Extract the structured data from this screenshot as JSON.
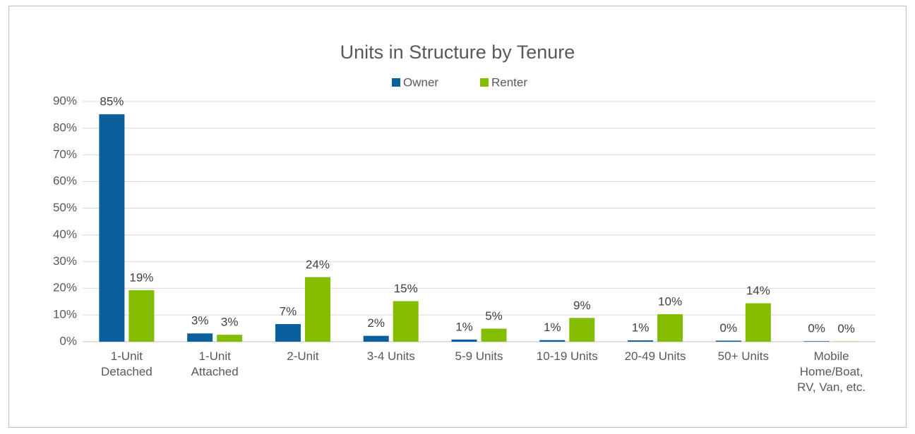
{
  "chart_data": {
    "type": "bar",
    "title": "Units in Structure by Tenure",
    "categories": [
      "1-Unit Detached",
      "1-Unit Attached",
      "2-Unit",
      "3-4 Units",
      "5-9 Units",
      "10-19 Units",
      "20-49 Units",
      "50+ Units",
      "Mobile Home/Boat, RV, Van, etc."
    ],
    "series": [
      {
        "name": "Owner",
        "color": "#0b5f9c",
        "values": [
          85.2,
          3.1,
          6.6,
          2.2,
          0.8,
          0.6,
          0.5,
          0.4,
          0.2
        ],
        "value_labels": [
          "85%",
          "3%",
          "7%",
          "2%",
          "1%",
          "1%",
          "1%",
          "0%",
          "0%"
        ]
      },
      {
        "name": "Renter",
        "color": "#84bd00",
        "values": [
          19.3,
          2.6,
          24.2,
          15.2,
          4.9,
          8.9,
          10.3,
          14.4,
          0.1
        ],
        "value_labels": [
          "19%",
          "3%",
          "24%",
          "15%",
          "5%",
          "9%",
          "10%",
          "14%",
          "0%"
        ]
      }
    ],
    "ylim": [
      0,
      90
    ],
    "yticks": [
      {
        "value": 0,
        "label": "0%"
      },
      {
        "value": 10,
        "label": "10%"
      },
      {
        "value": 20,
        "label": "20%"
      },
      {
        "value": 30,
        "label": "30%"
      },
      {
        "value": 40,
        "label": "40%"
      },
      {
        "value": 50,
        "label": "50%"
      },
      {
        "value": 60,
        "label": "60%"
      },
      {
        "value": 70,
        "label": "70%"
      },
      {
        "value": 80,
        "label": "80%"
      },
      {
        "value": 90,
        "label": "90%"
      }
    ],
    "grid": true,
    "legend": "top"
  }
}
